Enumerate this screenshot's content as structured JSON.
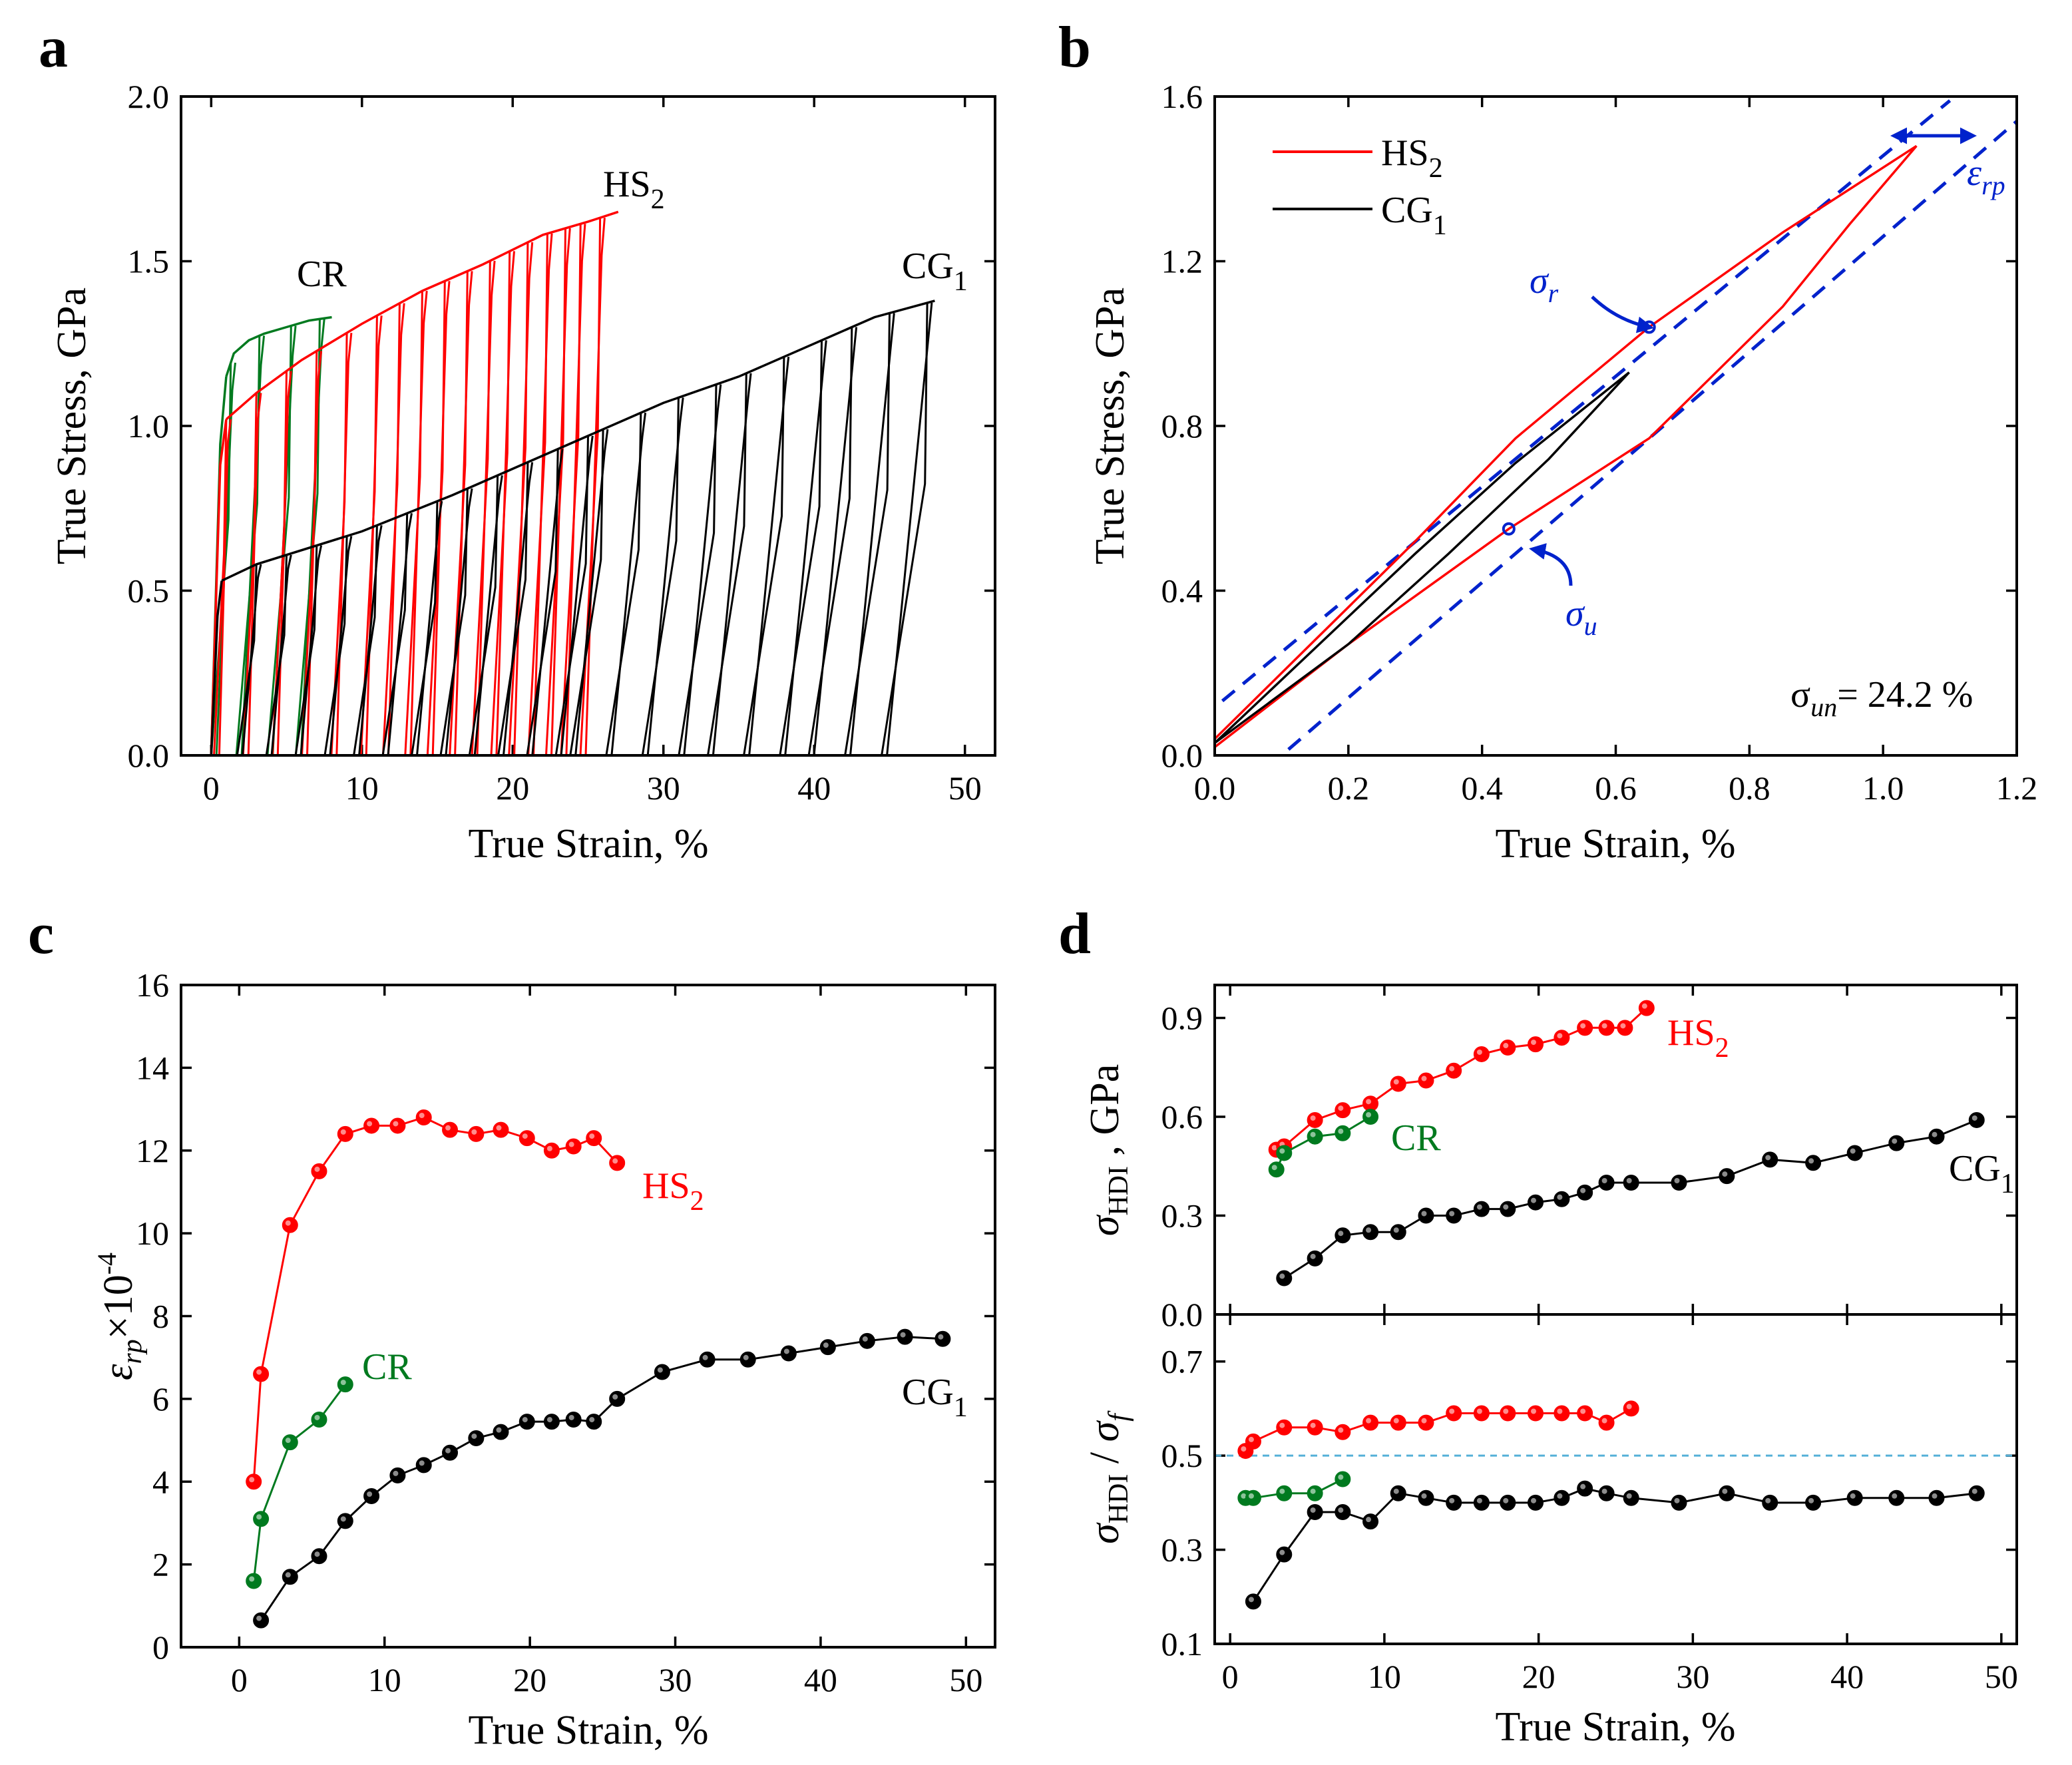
{
  "figure": {
    "panels": [
      {
        "label": "a"
      },
      {
        "label": "b"
      },
      {
        "label": "c"
      },
      {
        "label": "d"
      }
    ]
  },
  "colors": {
    "HS2": "#ff0000",
    "CR": "#007a1f",
    "CG1": "#000000",
    "guide": "#0022cc",
    "ref_line": "#55b0d8"
  },
  "chart_data": [
    {
      "panel": "a",
      "type": "line",
      "xlabel": "True Strain, %",
      "ylabel": "True Stress, GPa",
      "xlim": [
        -2,
        52
      ],
      "ylim": [
        0,
        2.0
      ],
      "xticks": [
        "0",
        "10",
        "20",
        "30",
        "40",
        "50"
      ],
      "xtick_values": [
        0,
        10,
        20,
        30,
        40,
        50
      ],
      "yticks": [
        "0.0",
        "0.5",
        "1.0",
        "1.5",
        "2.0"
      ],
      "ytick_values": [
        0,
        0.5,
        1.0,
        1.5,
        2.0
      ],
      "series": [
        {
          "name": "CR",
          "label_main": "CR",
          "label_sub": "",
          "color_key": "CR",
          "elastic_slope": 0.3,
          "yield_stress": 1.05,
          "initial_stress": 1.15,
          "envelope": [
            [
              1.0,
              1.15
            ],
            [
              1.5,
              1.22
            ],
            [
              2.5,
              1.26
            ],
            [
              3.5,
              1.28
            ],
            [
              5.0,
              1.3
            ],
            [
              6.5,
              1.32
            ],
            [
              8.0,
              1.33
            ]
          ],
          "unload_strains": [
            1.3,
            3.2,
            5.3,
            7.2
          ]
        },
        {
          "name": "HS2",
          "label_main": "HS",
          "label_sub": "2",
          "color_key": "HS2",
          "elastic_slope": 0.2,
          "yield_stress": 0.98,
          "initial_stress": 1.02,
          "envelope": [
            [
              1.0,
              1.02
            ],
            [
              3.0,
              1.1
            ],
            [
              6.0,
              1.2
            ],
            [
              10.0,
              1.31
            ],
            [
              14.0,
              1.41
            ],
            [
              18.0,
              1.49
            ],
            [
              22.0,
              1.58
            ],
            [
              25.0,
              1.62
            ],
            [
              27.0,
              1.65
            ]
          ],
          "unload_strains": [
            1.0,
            3.0,
            5.0,
            7.0,
            9.0,
            11.0,
            12.5,
            14.0,
            15.5,
            17.0,
            18.5,
            19.8,
            21.0,
            22.3,
            23.5,
            24.5,
            25.8
          ]
        },
        {
          "name": "CG1",
          "label_main": "CG",
          "label_sub": "1",
          "color_key": "CG1",
          "elastic_slope": 0.55,
          "yield_stress": 0.47,
          "initial_stress": 0.53,
          "envelope": [
            [
              0.7,
              0.53
            ],
            [
              3.0,
              0.58
            ],
            [
              10.0,
              0.68
            ],
            [
              16.0,
              0.79
            ],
            [
              20.0,
              0.87
            ],
            [
              25.0,
              0.97
            ],
            [
              30.0,
              1.07
            ],
            [
              35.0,
              1.15
            ],
            [
              40.0,
              1.25
            ],
            [
              44.0,
              1.33
            ],
            [
              48.0,
              1.38
            ]
          ],
          "unload_strains": [
            3.0,
            5.0,
            7.0,
            9.0,
            11.0,
            13.0,
            15.0,
            17.0,
            19.0,
            21.0,
            23.0,
            25.0,
            26.0,
            28.5,
            31.0,
            33.5,
            35.5,
            38.0,
            40.5,
            42.5,
            45.0,
            47.5
          ]
        }
      ],
      "annotations": []
    },
    {
      "panel": "b",
      "type": "line",
      "xlabel": "True Strain, %",
      "ylabel": "True Stress, GPa",
      "xlim": [
        0,
        1.2
      ],
      "ylim": [
        0,
        1.6
      ],
      "xticks": [
        "0.0",
        "0.2",
        "0.4",
        "0.6",
        "0.8",
        "1.0",
        "1.2"
      ],
      "xtick_values": [
        0,
        0.2,
        0.4,
        0.6,
        0.8,
        1.0,
        1.2
      ],
      "yticks": [
        "0.0",
        "0.4",
        "0.8",
        "1.2",
        "1.6"
      ],
      "ytick_values": [
        0,
        0.4,
        0.8,
        1.2,
        1.6
      ],
      "series": [
        {
          "name": "HS2",
          "legend_main": "HS",
          "legend_sub": "2",
          "color_key": "HS2",
          "loading": [
            [
              0.0,
              0.04
            ],
            [
              0.15,
              0.28
            ],
            [
              0.3,
              0.52
            ],
            [
              0.45,
              0.77
            ],
            [
              0.65,
              1.04
            ],
            [
              0.85,
              1.27
            ],
            [
              1.05,
              1.48
            ]
          ],
          "unloading": [
            [
              1.05,
              1.48
            ],
            [
              0.95,
              1.29
            ],
            [
              0.85,
              1.09
            ],
            [
              0.65,
              0.77
            ],
            [
              0.44,
              0.55
            ],
            [
              0.2,
              0.27
            ],
            [
              0.0,
              0.02
            ]
          ]
        },
        {
          "name": "CG1",
          "legend_main": "CG",
          "legend_sub": "1",
          "color_key": "CG1",
          "loading": [
            [
              0.0,
              0.03
            ],
            [
              0.15,
              0.26
            ],
            [
              0.3,
              0.49
            ],
            [
              0.45,
              0.71
            ],
            [
              0.62,
              0.93
            ]
          ],
          "unloading": [
            [
              0.62,
              0.93
            ],
            [
              0.5,
              0.72
            ],
            [
              0.35,
              0.49
            ],
            [
              0.2,
              0.27
            ],
            [
              0.0,
              0.03
            ]
          ]
        }
      ],
      "guides": [
        {
          "from": [
            -0.05,
            0.05
          ],
          "to": [
            1.1,
            1.59
          ]
        },
        {
          "from": [
            0.05,
            -0.07
          ],
          "to": [
            1.2,
            1.54
          ]
        }
      ],
      "marks": [
        {
          "name": "sigma_r",
          "x": 0.65,
          "y": 1.04
        },
        {
          "name": "sigma_u",
          "x": 0.44,
          "y": 0.55
        }
      ],
      "sigma_r_symbol": "σ",
      "sigma_r_sub": "r",
      "sigma_u_symbol": "σ",
      "sigma_u_sub": "u",
      "eps_rp_symbol": "ε",
      "eps_rp_sub": "rp",
      "sigma_un_symbol": "σ",
      "sigma_un_sub": "un",
      "sigma_un_value": "= 24.2 %"
    },
    {
      "panel": "c",
      "type": "scatter",
      "xlabel": "True Strain, %",
      "ylabel_symbol": "ε",
      "ylabel_sub": "rp",
      "ylabel_factor": "×10",
      "ylabel_exp": "-4",
      "xlim": [
        -4,
        52
      ],
      "ylim": [
        0,
        16
      ],
      "xticks": [
        "0",
        "10",
        "20",
        "30",
        "40",
        "50"
      ],
      "xtick_values": [
        0,
        10,
        20,
        30,
        40,
        50
      ],
      "yticks": [
        "0",
        "2",
        "4",
        "6",
        "8",
        "10",
        "12",
        "14",
        "16"
      ],
      "ytick_values": [
        0,
        2,
        4,
        6,
        8,
        10,
        12,
        14,
        16
      ],
      "series": [
        {
          "name": "HS2",
          "label_main": "HS",
          "label_sub": "2",
          "color_key": "HS2",
          "x": [
            1.0,
            1.5,
            3.5,
            5.5,
            7.3,
            9.1,
            10.9,
            12.7,
            14.5,
            16.3,
            18.0,
            19.8,
            21.5,
            23.0,
            24.4,
            26.0
          ],
          "y": [
            4.0,
            6.6,
            10.2,
            11.5,
            12.4,
            12.6,
            12.6,
            12.8,
            12.5,
            12.4,
            12.5,
            12.3,
            12.0,
            12.1,
            12.3,
            11.7
          ]
        },
        {
          "name": "CR",
          "label_main": "CR",
          "label_sub": "",
          "color_key": "CR",
          "x": [
            1.0,
            1.5,
            3.5,
            5.5,
            7.3
          ],
          "y": [
            1.6,
            3.1,
            4.95,
            5.5,
            6.35
          ]
        },
        {
          "name": "CG1",
          "label_main": "CG",
          "label_sub": "1",
          "color_key": "CG1",
          "x": [
            1.5,
            3.5,
            5.5,
            7.3,
            9.1,
            10.9,
            12.7,
            14.5,
            16.3,
            18.0,
            19.8,
            21.5,
            23.0,
            24.4,
            26.0,
            29.1,
            32.2,
            35.0,
            37.8,
            40.5,
            43.2,
            45.8,
            48.4
          ],
          "y": [
            0.65,
            1.7,
            2.2,
            3.05,
            3.65,
            4.15,
            4.4,
            4.7,
            5.05,
            5.2,
            5.45,
            5.45,
            5.5,
            5.45,
            6.0,
            6.65,
            6.95,
            6.95,
            7.1,
            7.25,
            7.4,
            7.5,
            7.45
          ]
        }
      ]
    },
    {
      "panel": "d_top",
      "type": "scatter",
      "xlabel": "",
      "ylabel_symbol": "σ",
      "ylabel_sub": "HDI",
      "ylabel_suffix": " , GPa",
      "xlim": [
        -1,
        51
      ],
      "ylim": [
        0,
        1.0
      ],
      "xticks": [],
      "xtick_values": [
        0,
        10,
        20,
        30,
        40,
        50
      ],
      "yticks": [
        "0.0",
        "0.3",
        "0.6",
        "0.9"
      ],
      "ytick_values": [
        0,
        0.3,
        0.6,
        0.9
      ],
      "series": [
        {
          "name": "HS2",
          "label_main": "HS",
          "label_sub": "2",
          "color_key": "HS2",
          "x": [
            3.0,
            3.5,
            5.5,
            7.3,
            9.1,
            10.9,
            12.7,
            14.5,
            16.3,
            18.0,
            19.8,
            21.5,
            23.0,
            24.4,
            25.6,
            27.0
          ],
          "y": [
            0.5,
            0.51,
            0.59,
            0.62,
            0.64,
            0.7,
            0.71,
            0.74,
            0.79,
            0.81,
            0.82,
            0.84,
            0.87,
            0.87,
            0.87,
            0.93
          ]
        },
        {
          "name": "CR",
          "label_main": "CR",
          "label_sub": "",
          "color_key": "CR",
          "x": [
            3.0,
            3.5,
            5.5,
            7.3,
            9.1
          ],
          "y": [
            0.44,
            0.49,
            0.54,
            0.55,
            0.6
          ]
        },
        {
          "name": "CG1",
          "label_main": "CG",
          "label_sub": "1",
          "color_key": "CG1",
          "x": [
            3.5,
            5.5,
            7.3,
            9.1,
            10.9,
            12.7,
            14.5,
            16.3,
            18.0,
            19.8,
            21.5,
            23.0,
            24.4,
            26.0,
            29.1,
            32.2,
            35.0,
            37.8,
            40.5,
            43.2,
            45.8,
            48.4
          ],
          "y": [
            0.11,
            0.17,
            0.24,
            0.25,
            0.25,
            0.3,
            0.3,
            0.32,
            0.32,
            0.34,
            0.35,
            0.37,
            0.4,
            0.4,
            0.4,
            0.42,
            0.47,
            0.46,
            0.49,
            0.52,
            0.54,
            0.59
          ]
        }
      ]
    },
    {
      "panel": "d_bottom",
      "type": "scatter",
      "xlabel": "True Strain, %",
      "ylabel_symbol": "σ",
      "ylabel_sub": "HDI",
      "ylabel_mid": " / ",
      "ylabel_symbol2": "σ",
      "ylabel_sub2": "f",
      "xlim": [
        -1,
        51
      ],
      "ylim": [
        0.1,
        0.8
      ],
      "xticks": [
        "0",
        "10",
        "20",
        "30",
        "40",
        "50"
      ],
      "xtick_values": [
        0,
        10,
        20,
        30,
        40,
        50
      ],
      "yticks": [
        "0.1",
        "0.3",
        "0.5",
        "0.7"
      ],
      "ytick_values": [
        0.1,
        0.3,
        0.5,
        0.7
      ],
      "reference_y": 0.5,
      "series": [
        {
          "name": "HS2",
          "color_key": "HS2",
          "x": [
            1.0,
            1.5,
            3.5,
            5.5,
            7.3,
            9.1,
            10.9,
            12.7,
            14.5,
            16.3,
            18.0,
            19.8,
            21.5,
            23.0,
            24.4,
            26.0
          ],
          "y": [
            0.51,
            0.53,
            0.56,
            0.56,
            0.55,
            0.57,
            0.57,
            0.57,
            0.59,
            0.59,
            0.59,
            0.59,
            0.59,
            0.59,
            0.57,
            0.6
          ]
        },
        {
          "name": "CR",
          "color_key": "CR",
          "x": [
            1.0,
            1.5,
            3.5,
            5.5,
            7.3
          ],
          "y": [
            0.41,
            0.41,
            0.42,
            0.42,
            0.45
          ]
        },
        {
          "name": "CG1",
          "color_key": "CG1",
          "x": [
            1.5,
            3.5,
            5.5,
            7.3,
            9.1,
            10.9,
            12.7,
            14.5,
            16.3,
            18.0,
            19.8,
            21.5,
            23.0,
            24.4,
            26.0,
            29.1,
            32.2,
            35.0,
            37.8,
            40.5,
            43.2,
            45.8,
            48.4
          ],
          "y": [
            0.19,
            0.29,
            0.38,
            0.38,
            0.36,
            0.42,
            0.41,
            0.4,
            0.4,
            0.4,
            0.4,
            0.41,
            0.43,
            0.42,
            0.41,
            0.4,
            0.42,
            0.4,
            0.4,
            0.41,
            0.41,
            0.41,
            0.42
          ]
        }
      ]
    }
  ]
}
